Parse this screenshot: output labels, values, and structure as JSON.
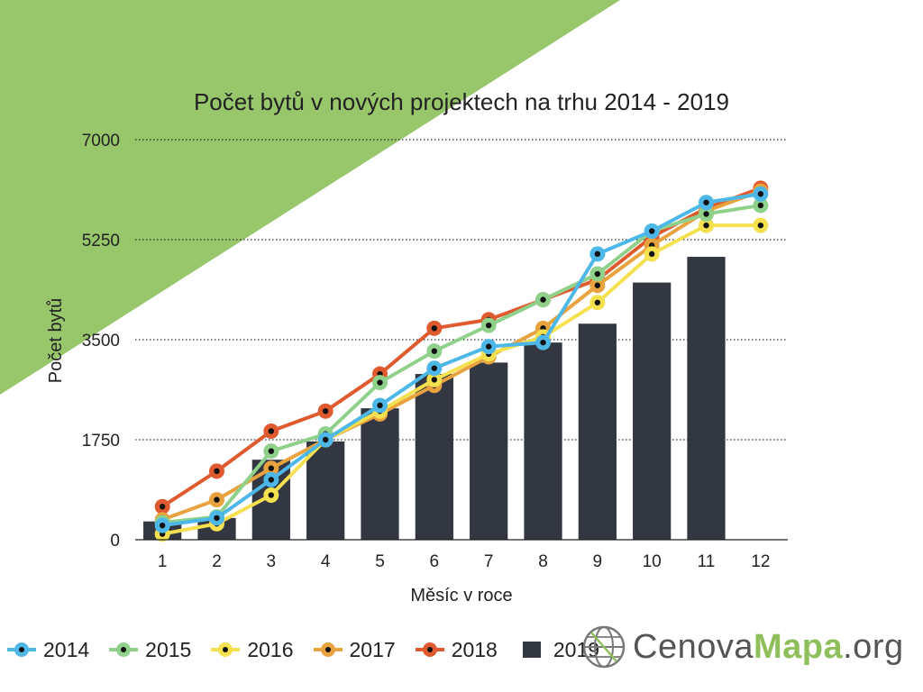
{
  "colors": {
    "accent_green": "#97c66b",
    "grid": "#000000",
    "bar": "#333742",
    "axis_text": "#222222"
  },
  "chart_data": {
    "type": "bar",
    "title": "Počet bytů v nových projektech na trhu 2014 - 2019",
    "xlabel": "Měsíc v roce",
    "ylabel": "Počet bytů",
    "categories": [
      "1",
      "2",
      "3",
      "4",
      "5",
      "6",
      "7",
      "8",
      "9",
      "10",
      "11",
      "12"
    ],
    "ylim": [
      0,
      7000
    ],
    "yticks": [
      "0",
      "1750",
      "3500",
      "5250",
      "7000"
    ],
    "grid": "horizontal dotted",
    "legend_position": "bottom",
    "series": [
      {
        "name": "2014",
        "type": "line",
        "color": "#4db8e8",
        "values": [
          250,
          380,
          1050,
          1750,
          2350,
          3000,
          3380,
          3450,
          5000,
          5400,
          5900,
          6050
        ]
      },
      {
        "name": "2015",
        "type": "line",
        "color": "#8fd18b",
        "values": [
          300,
          400,
          1550,
          1850,
          2750,
          3300,
          3750,
          4200,
          4650,
          5400,
          5700,
          5850
        ]
      },
      {
        "name": "2016",
        "type": "line",
        "color": "#f5e04f",
        "values": [
          100,
          280,
          780,
          1750,
          2250,
          2800,
          3250,
          3550,
          4150,
          5000,
          5500,
          5500
        ]
      },
      {
        "name": "2017",
        "type": "line",
        "color": "#e8a23e",
        "values": [
          350,
          700,
          1250,
          1750,
          2200,
          2700,
          3200,
          3700,
          4450,
          5150,
          5750,
          6100
        ]
      },
      {
        "name": "2018",
        "type": "line",
        "color": "#e05a30",
        "values": [
          580,
          1200,
          1900,
          2250,
          2900,
          3700,
          3850,
          4200,
          4550,
          5300,
          5800,
          6150
        ]
      },
      {
        "name": "2019",
        "type": "bar",
        "color": "#333742",
        "values": [
          320,
          380,
          1400,
          1720,
          2300,
          2900,
          3100,
          3450,
          3780,
          4500,
          4950,
          null
        ]
      }
    ]
  },
  "brand": {
    "part1": "Cenova",
    "part2": "Mapa",
    "part3": ".org",
    "icon": "globe-grid-icon"
  }
}
